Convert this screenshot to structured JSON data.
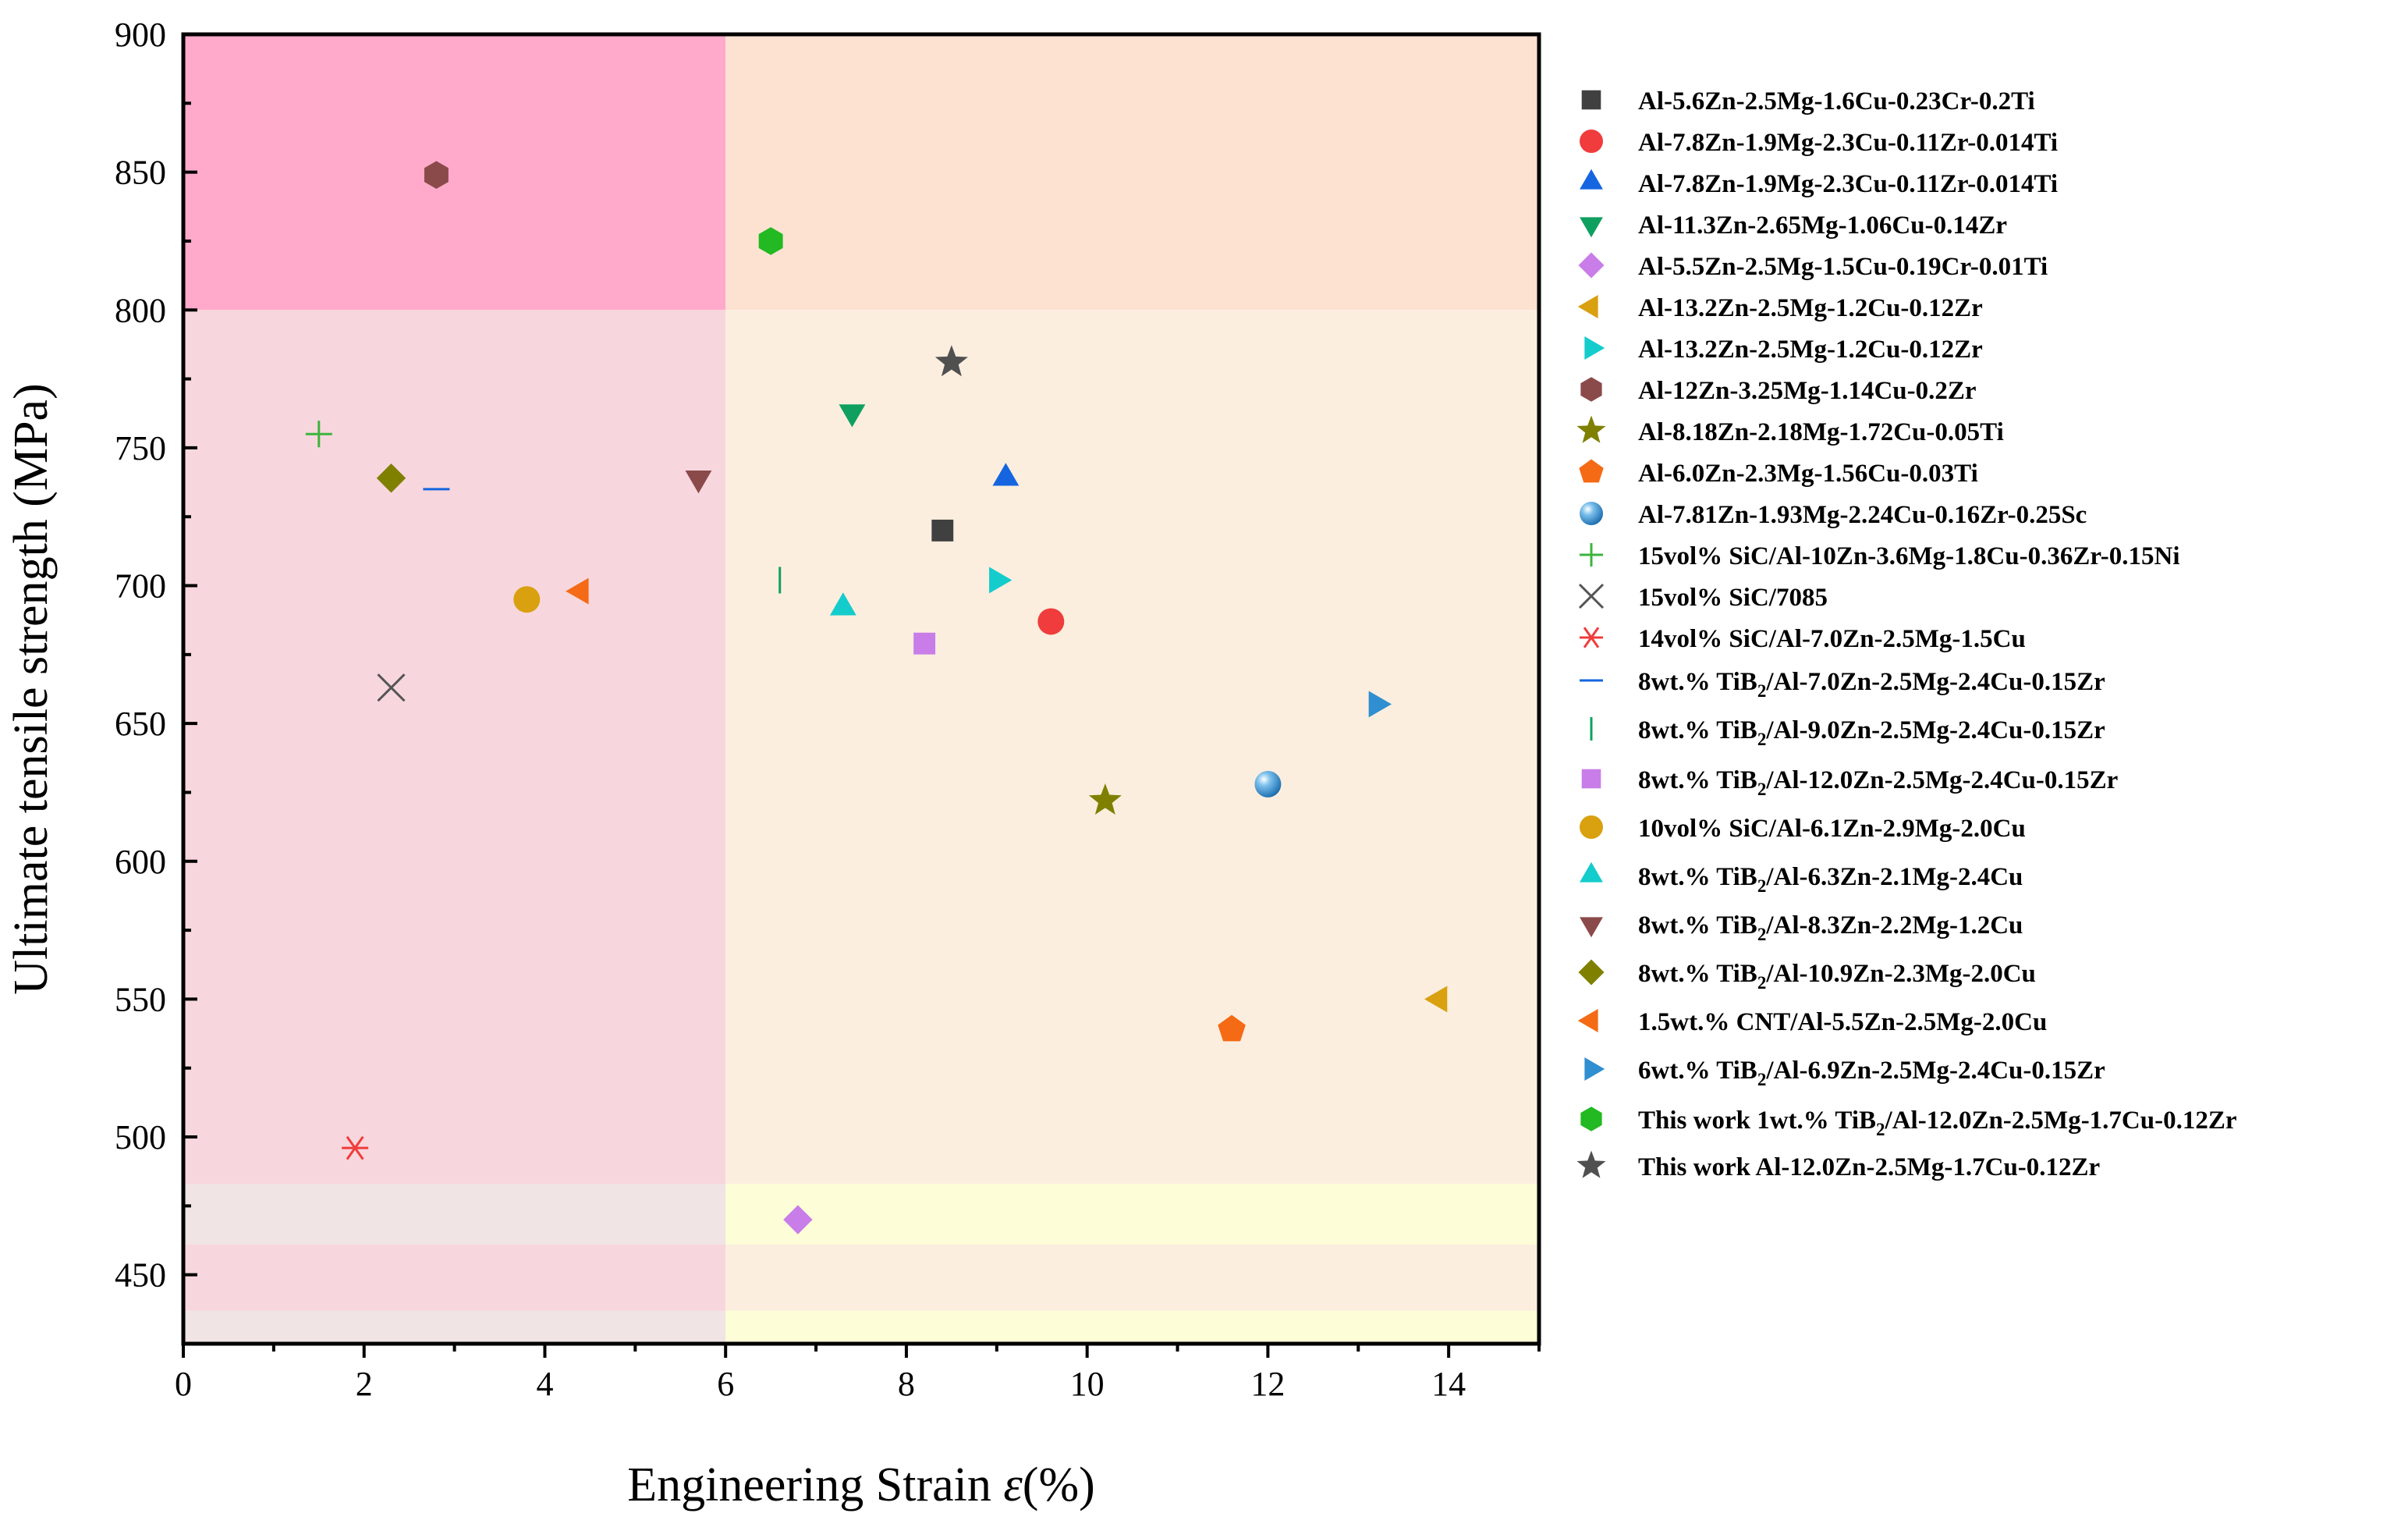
{
  "chart_data": {
    "type": "scatter",
    "title": "",
    "xlabel": "Engineering Strain",
    "xlabel_symbol": "ε",
    "xlabel_unit": "(%)",
    "ylabel": "Ultimate tensile strength (MPa)",
    "xlim": [
      0,
      15
    ],
    "ylim": [
      425,
      900
    ],
    "xticks": [
      0,
      2,
      4,
      6,
      8,
      10,
      12,
      14
    ],
    "yticks": [
      450,
      500,
      550,
      600,
      650,
      700,
      750,
      800,
      850,
      900
    ],
    "grid": false,
    "legend_position": "right, outside plot",
    "background_regions": [
      {
        "x": [
          0,
          6
        ],
        "y": [
          800,
          900
        ],
        "color": "#ffaacb"
      },
      {
        "x": [
          6,
          15
        ],
        "y": [
          800,
          900
        ],
        "color": "#fde2d2"
      },
      {
        "x": [
          0,
          6
        ],
        "y": [
          425,
          800
        ],
        "color": "#f7d7dd"
      },
      {
        "x": [
          6,
          15
        ],
        "y": [
          425,
          800
        ],
        "color": "#fbeedf"
      },
      {
        "x": [
          0,
          6
        ],
        "y": [
          461,
          483
        ],
        "color": "#f1e4e4"
      },
      {
        "x": [
          0,
          6
        ],
        "y": [
          425,
          437
        ],
        "color": "#f1e4e4"
      },
      {
        "x": [
          6,
          15
        ],
        "y": [
          461,
          483
        ],
        "color": "#fdfdd8"
      },
      {
        "x": [
          6,
          15
        ],
        "y": [
          425,
          437
        ],
        "color": "#fdfdd8"
      }
    ],
    "series": [
      {
        "name": "Al-5.6Zn-2.5Mg-1.6Cu-0.23Cr-0.2Ti",
        "marker": "square",
        "color": "#404040",
        "x": 8.4,
        "y": 720
      },
      {
        "name": "Al-7.8Zn-1.9Mg-2.3Cu-0.11Zr-0.014Ti",
        "marker": "circle",
        "color": "#f03c3c",
        "x": 9.6,
        "y": 687
      },
      {
        "name": "Al-7.8Zn-1.9Mg-2.3Cu-0.11Zr-0.014Ti",
        "marker": "triangle-up",
        "color": "#1565e0",
        "x": 9.1,
        "y": 739
      },
      {
        "name": "Al-11.3Zn-2.65Mg-1.06Cu-0.14Zr",
        "marker": "triangle-down",
        "color": "#0fa060",
        "x": 7.4,
        "y": 763
      },
      {
        "name": "Al-5.5Zn-2.5Mg-1.5Cu-0.19Cr-0.01Ti",
        "marker": "diamond",
        "color": "#c87de8",
        "x": 6.8,
        "y": 470
      },
      {
        "name": "Al-13.2Zn-2.5Mg-1.2Cu-0.12Zr",
        "marker": "triangle-left",
        "color": "#d9a00f",
        "x": 13.9,
        "y": 550
      },
      {
        "name": "Al-13.2Zn-2.5Mg-1.2Cu-0.12Zr",
        "marker": "triangle-right",
        "color": "#14cccc",
        "x": 9.0,
        "y": 702
      },
      {
        "name": "Al-12Zn-3.25Mg-1.14Cu-0.2Zr",
        "marker": "hexagon",
        "color": "#8b4a4a",
        "x": 2.8,
        "y": 849
      },
      {
        "name": "Al-8.18Zn-2.18Mg-1.72Cu-0.05Ti",
        "marker": "star",
        "color": "#808000",
        "x": 10.2,
        "y": 622
      },
      {
        "name": "Al-6.0Zn-2.3Mg-1.56Cu-0.03Ti",
        "marker": "pentagon",
        "color": "#f56a14",
        "x": 11.6,
        "y": 539
      },
      {
        "name": "Al-7.81Zn-1.93Mg-2.24Cu-0.16Zr-0.25Sc",
        "marker": "sphere",
        "color": "#2f8fd0",
        "x": 12.0,
        "y": 628
      },
      {
        "name": "15vol% SiC/Al-10Zn-3.6Mg-1.8Cu-0.36Zr-0.15Ni",
        "marker": "plus",
        "color": "#3db43d",
        "x": 1.5,
        "y": 755
      },
      {
        "name": "15vol% SiC/7085",
        "marker": "x",
        "color": "#555555",
        "x": 2.3,
        "y": 663
      },
      {
        "name": "14vol% SiC/Al-7.0Zn-2.5Mg-1.5Cu",
        "marker": "asterisk",
        "color": "#f03c3c",
        "x": 1.9,
        "y": 496
      },
      {
        "name": "8wt.% TiB₂/Al-7.0Zn-2.5Mg-2.4Cu-0.15Zr",
        "marker": "hline",
        "color": "#1565e0",
        "x": 2.8,
        "y": 735
      },
      {
        "name": "8wt.% TiB₂/Al-9.0Zn-2.5Mg-2.4Cu-0.15Zr",
        "marker": "vline",
        "color": "#0fa060",
        "x": 6.6,
        "y": 702
      },
      {
        "name": "8wt.% TiB₂/Al-12.0Zn-2.5Mg-2.4Cu-0.15Zr",
        "marker": "square",
        "color": "#c87de8",
        "x": 8.2,
        "y": 679
      },
      {
        "name": "10vol% SiC/Al-6.1Zn-2.9Mg-2.0Cu",
        "marker": "circle",
        "color": "#d9a00f",
        "x": 3.8,
        "y": 695
      },
      {
        "name": "8wt.% TiB₂/Al-6.3Zn-2.1Mg-2.4Cu",
        "marker": "triangle-up",
        "color": "#14cccc",
        "x": 7.3,
        "y": 692
      },
      {
        "name": "8wt.% TiB₂/Al-8.3Zn-2.2Mg-1.2Cu",
        "marker": "triangle-down",
        "color": "#8b4a4a",
        "x": 5.7,
        "y": 739
      },
      {
        "name": "8wt.% TiB₂/Al-10.9Zn-2.3Mg-2.0Cu",
        "marker": "diamond",
        "color": "#808000",
        "x": 2.3,
        "y": 739
      },
      {
        "name": "1.5wt.% CNT/Al-5.5Zn-2.5Mg-2.0Cu",
        "marker": "triangle-left",
        "color": "#f56a14",
        "x": 4.4,
        "y": 698
      },
      {
        "name": "6wt.% TiB₂/Al-6.9Zn-2.5Mg-2.4Cu-0.15Zr",
        "marker": "triangle-right",
        "color": "#2f8fd0",
        "x": 13.2,
        "y": 657
      },
      {
        "name": "This work 1wt.% TiB₂/Al-12.0Zn-2.5Mg-1.7Cu-0.12Zr",
        "marker": "hexagon",
        "color": "#22b922",
        "x": 6.5,
        "y": 825
      },
      {
        "name": "This work Al-12.0Zn-2.5Mg-1.7Cu-0.12Zr",
        "marker": "star",
        "color": "#505050",
        "x": 8.5,
        "y": 781
      }
    ]
  }
}
